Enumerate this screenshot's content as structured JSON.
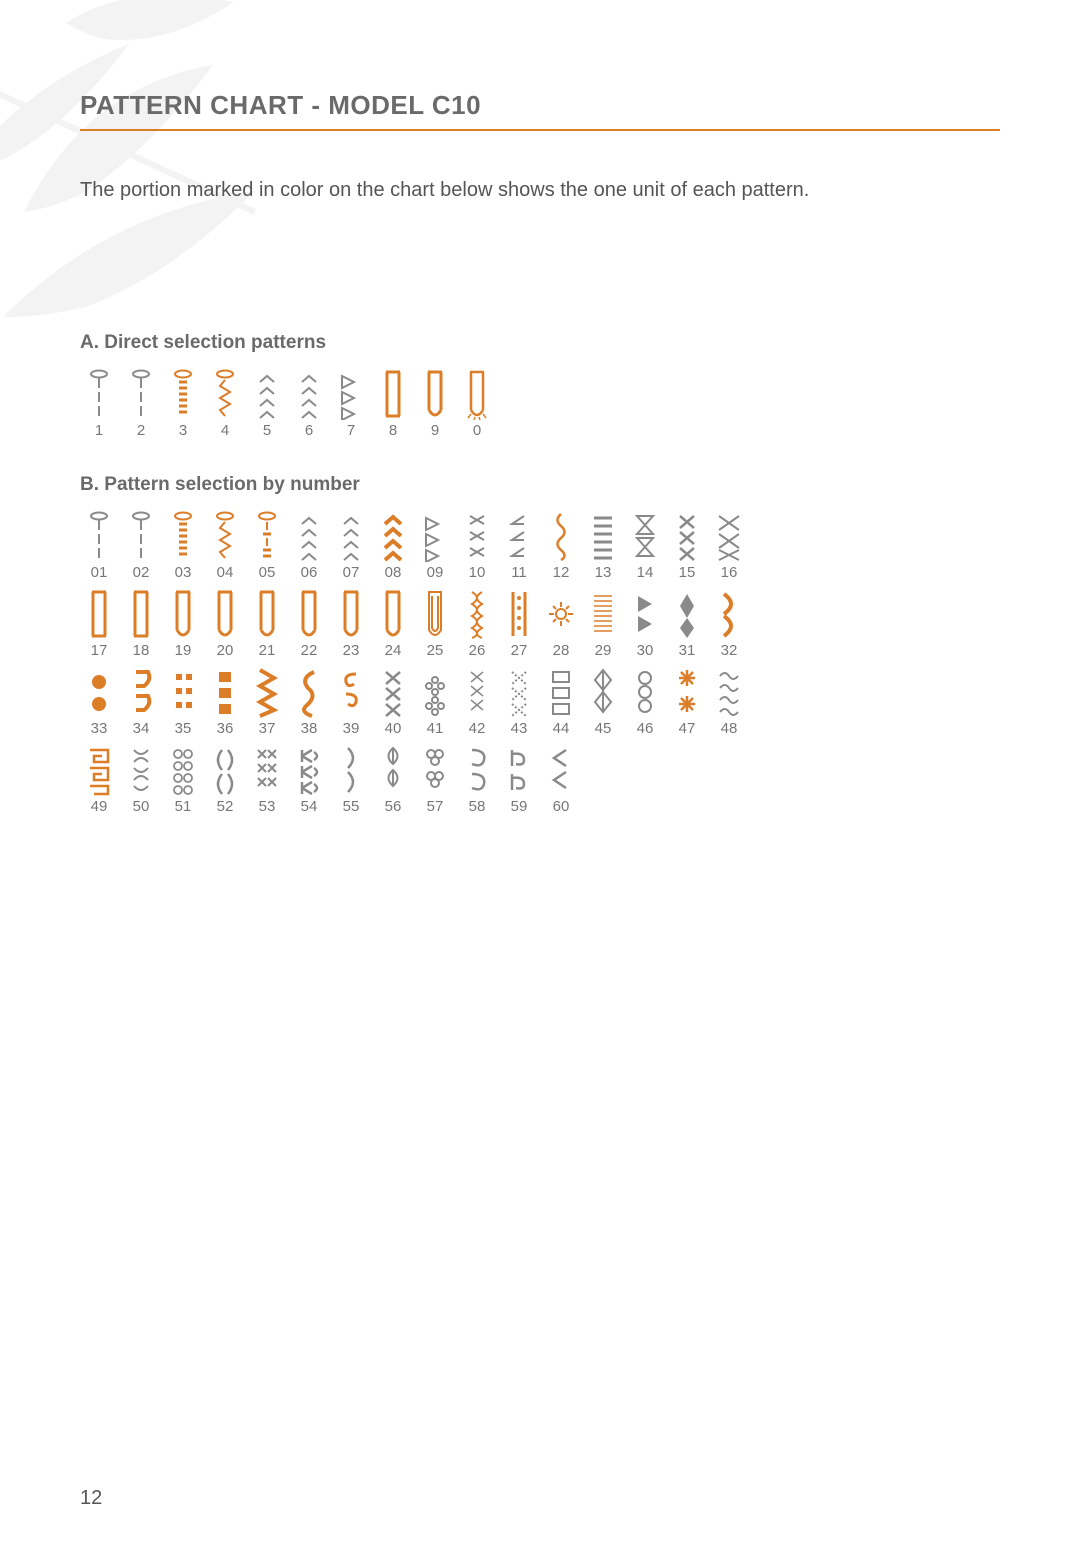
{
  "page": {
    "title": "PATTERN CHART - MODEL C10",
    "intro": "The portion marked in color on the chart below shows the one unit of each pattern.",
    "page_number": "12"
  },
  "colors": {
    "accent": "#dc7d28",
    "text": "#555555",
    "heading": "#6a6a6a",
    "muted": "#888888",
    "icon_gray": "#8a8a8a",
    "icon_orange": "#dc7d28",
    "bg_leaf": "#9aa39a"
  },
  "sections": {
    "a": {
      "heading": "A. Direct selection patterns",
      "items": [
        {
          "n": "1",
          "shape": "needle-dash",
          "color": "icon_gray"
        },
        {
          "n": "2",
          "shape": "needle-dash",
          "color": "icon_gray"
        },
        {
          "n": "3",
          "shape": "needle-bars",
          "color": "icon_orange"
        },
        {
          "n": "4",
          "shape": "needle-zig",
          "color": "icon_orange"
        },
        {
          "n": "5",
          "shape": "chevrons",
          "color": "icon_gray"
        },
        {
          "n": "6",
          "shape": "chevrons",
          "color": "icon_gray"
        },
        {
          "n": "7",
          "shape": "tri-chevrons",
          "color": "icon_gray"
        },
        {
          "n": "8",
          "shape": "sq-column",
          "color": "icon_orange"
        },
        {
          "n": "9",
          "shape": "u-column",
          "color": "icon_orange"
        },
        {
          "n": "0",
          "shape": "u-column-spiky",
          "color": "icon_orange"
        }
      ]
    },
    "b": {
      "heading": "B. Pattern selection by number",
      "items": [
        {
          "n": "01",
          "shape": "needle-dash",
          "color": "icon_gray"
        },
        {
          "n": "02",
          "shape": "needle-dash",
          "color": "icon_gray"
        },
        {
          "n": "03",
          "shape": "needle-bars",
          "color": "icon_orange"
        },
        {
          "n": "04",
          "shape": "needle-zig",
          "color": "icon_orange"
        },
        {
          "n": "05",
          "shape": "needle-mixed",
          "color": "icon_orange"
        },
        {
          "n": "06",
          "shape": "chevrons",
          "color": "icon_gray"
        },
        {
          "n": "07",
          "shape": "chevrons",
          "color": "icon_gray"
        },
        {
          "n": "08",
          "shape": "chevrons-heavy",
          "color": "icon_orange"
        },
        {
          "n": "09",
          "shape": "tri-chevrons",
          "color": "icon_gray"
        },
        {
          "n": "10",
          "shape": "slants",
          "color": "icon_gray"
        },
        {
          "n": "11",
          "shape": "angles",
          "color": "icon_gray"
        },
        {
          "n": "12",
          "shape": "wave-line",
          "color": "icon_orange"
        },
        {
          "n": "13",
          "shape": "dash-rows",
          "color": "icon_gray"
        },
        {
          "n": "14",
          "shape": "hourglass",
          "color": "icon_gray"
        },
        {
          "n": "15",
          "shape": "x-stack",
          "color": "icon_gray"
        },
        {
          "n": "16",
          "shape": "x-stack-wide",
          "color": "icon_gray"
        },
        {
          "n": "17",
          "shape": "sq-column",
          "color": "icon_orange"
        },
        {
          "n": "18",
          "shape": "sq-column",
          "color": "icon_orange"
        },
        {
          "n": "19",
          "shape": "u-column",
          "color": "icon_orange"
        },
        {
          "n": "20",
          "shape": "u-column",
          "color": "icon_orange"
        },
        {
          "n": "21",
          "shape": "u-column",
          "color": "icon_orange"
        },
        {
          "n": "22",
          "shape": "u-column",
          "color": "icon_orange"
        },
        {
          "n": "23",
          "shape": "u-column",
          "color": "icon_orange"
        },
        {
          "n": "24",
          "shape": "u-column",
          "color": "icon_orange"
        },
        {
          "n": "25",
          "shape": "u-column-outline",
          "color": "icon_orange"
        },
        {
          "n": "26",
          "shape": "braid-col",
          "color": "icon_orange"
        },
        {
          "n": "27",
          "shape": "dots-col",
          "color": "icon_orange"
        },
        {
          "n": "28",
          "shape": "sunburst",
          "color": "icon_orange"
        },
        {
          "n": "29",
          "shape": "hatch-block",
          "color": "icon_orange"
        },
        {
          "n": "30",
          "shape": "tri-right",
          "color": "icon_gray"
        },
        {
          "n": "31",
          "shape": "diamond-solid",
          "color": "icon_gray"
        },
        {
          "n": "32",
          "shape": "arc-right",
          "color": "icon_orange"
        },
        {
          "n": "33",
          "shape": "two-dots",
          "color": "icon_orange"
        },
        {
          "n": "34",
          "shape": "hook-shapes",
          "color": "icon_orange"
        },
        {
          "n": "35",
          "shape": "colon-shapes",
          "color": "icon_orange"
        },
        {
          "n": "36",
          "shape": "block-shapes",
          "color": "icon_orange"
        },
        {
          "n": "37",
          "shape": "zig-col",
          "color": "icon_orange"
        },
        {
          "n": "38",
          "shape": "s-curve",
          "color": "icon_orange"
        },
        {
          "n": "39",
          "shape": "spiral-s",
          "color": "icon_orange"
        },
        {
          "n": "40",
          "shape": "x-stack",
          "color": "icon_gray"
        },
        {
          "n": "41",
          "shape": "flower-x",
          "color": "icon_gray"
        },
        {
          "n": "42",
          "shape": "x-stack-thin",
          "color": "icon_gray"
        },
        {
          "n": "43",
          "shape": "x-stack-dotted",
          "color": "icon_gray"
        },
        {
          "n": "44",
          "shape": "bar-rows",
          "color": "icon_gray"
        },
        {
          "n": "45",
          "shape": "diamond-stack",
          "color": "icon_gray"
        },
        {
          "n": "46",
          "shape": "loop-stack",
          "color": "icon_gray"
        },
        {
          "n": "47",
          "shape": "asterisk-stack",
          "color": "icon_orange"
        },
        {
          "n": "48",
          "shape": "wave-stack",
          "color": "icon_gray"
        },
        {
          "n": "49",
          "shape": "spiral-sq",
          "color": "icon_orange"
        },
        {
          "n": "50",
          "shape": "x-soft",
          "color": "icon_gray"
        },
        {
          "n": "51",
          "shape": "flower-grid",
          "color": "icon_gray"
        },
        {
          "n": "52",
          "shape": "paren-shapes",
          "color": "icon_gray"
        },
        {
          "n": "53",
          "shape": "x-grid",
          "color": "icon_gray"
        },
        {
          "n": "54",
          "shape": "ka-shapes",
          "color": "icon_gray"
        },
        {
          "n": "55",
          "shape": "curve-col",
          "color": "icon_gray"
        },
        {
          "n": "56",
          "shape": "leaf-col",
          "color": "icon_gray"
        },
        {
          "n": "57",
          "shape": "clover-col",
          "color": "icon_gray"
        },
        {
          "n": "58",
          "shape": "loop-open",
          "color": "icon_gray"
        },
        {
          "n": "59",
          "shape": "arrow-loop",
          "color": "icon_gray"
        },
        {
          "n": "60",
          "shape": "tri-open",
          "color": "icon_gray"
        }
      ]
    }
  }
}
